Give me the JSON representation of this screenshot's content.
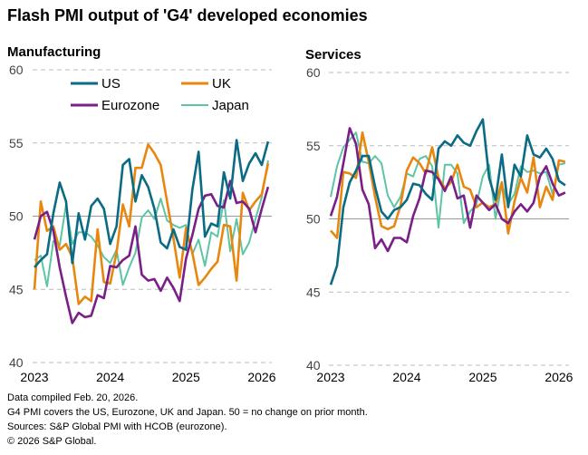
{
  "title": "Flash PMI output of 'G4' developed economies",
  "footnotes": [
    "Data compiled Feb. 20, 2026.",
    "G4 PMI covers the US, Eurozone, UK and Japan. 50 = no change on prior month.",
    "Sources: S&P Global PMI with HCOB (eurozone).",
    "© 2026 S&P Global."
  ],
  "colors": {
    "US": "#0b6b85",
    "UK": "#e8870e",
    "Eurozone": "#7a1f87",
    "Japan": "#5ec4a5"
  },
  "chart_data": [
    {
      "type": "line",
      "title": "Manufacturing",
      "x_start": "2023-01",
      "x_end": "2026-02",
      "frequency": "monthly",
      "xticks": [
        "2023",
        "2024",
        "2025",
        "2026"
      ],
      "yticks": [
        40,
        45,
        50,
        55,
        60
      ],
      "ylim": [
        40,
        60
      ],
      "grid": "dashed horizontal, solid at 50",
      "legend": "top",
      "series": [
        {
          "name": "US",
          "values": [
            46.5,
            47,
            47.4,
            50.2,
            52.3,
            51,
            46.8,
            50.2,
            48.4,
            50.7,
            51.2,
            50.5,
            48.1,
            49.3,
            53.5,
            53.9,
            51,
            52.8,
            52,
            50.5,
            48.2,
            47.8,
            49.1,
            47.9,
            47.7,
            51.8,
            54.4,
            48.6,
            49.5,
            49.3,
            53,
            51.2,
            55.2,
            52.4,
            53.6,
            54.3,
            53.5,
            55.1
          ]
        },
        {
          "name": "UK",
          "values": [
            45,
            51,
            49,
            49.3,
            47.7,
            48.1,
            47.2,
            44,
            44.5,
            44.2,
            49.1,
            45.5,
            45.4,
            47.5,
            50.8,
            49.3,
            53.3,
            53.3,
            54.9,
            54.3,
            53.5,
            51,
            48.5,
            45.8,
            49.2,
            47.5,
            45.3,
            45.8,
            46.4,
            46.9,
            49.4,
            49.3,
            45.6,
            51.6,
            50.4,
            51,
            51.5,
            53.6
          ]
        },
        {
          "name": "Eurozone",
          "values": [
            48.4,
            50,
            50.3,
            49,
            46.5,
            44.5,
            42.7,
            43.4,
            43.1,
            43.2,
            44.6,
            44.4,
            46.6,
            46.5,
            47,
            47.3,
            49.3,
            46,
            45.6,
            45.7,
            44.9,
            45.8,
            45.1,
            44.2,
            47.1,
            48.7,
            50.5,
            51.4,
            51.5,
            50.7,
            50.6,
            52.4,
            50.9,
            51,
            50.5,
            48.9,
            50.5,
            52
          ]
        },
        {
          "name": "Japan",
          "values": [
            47,
            47.3,
            45.2,
            48.3,
            48,
            50.8,
            48.1,
            48.9,
            48.9,
            48.6,
            48,
            47.2,
            46.8,
            47.7,
            45.3,
            46.5,
            47.5,
            49.9,
            50.4,
            49.8,
            51.2,
            49.7,
            49.4,
            49.2,
            49.4,
            47.4,
            48.4,
            46.6,
            48.9,
            48.6,
            51.1,
            47.6,
            49.8,
            47.4,
            48.2,
            49.8,
            51.3,
            53.8
          ]
        }
      ]
    },
    {
      "type": "line",
      "title": "Services",
      "x_start": "2023-01",
      "x_end": "2026-02",
      "frequency": "monthly",
      "xticks": [
        "2023",
        "2024",
        "2025",
        "2026"
      ],
      "yticks": [
        40,
        45,
        50,
        55,
        60
      ],
      "ylim": [
        40,
        60
      ],
      "grid": "dashed horizontal, solid at 50",
      "series": [
        {
          "name": "US",
          "values": [
            45.5,
            46.8,
            50.8,
            52.5,
            53.3,
            54.3,
            54.3,
            52.2,
            50.5,
            50,
            50.6,
            50.8,
            51.3,
            52.4,
            52.3,
            51.7,
            51.3,
            54.8,
            55.3,
            55,
            55.7,
            55.2,
            55,
            56,
            56.8,
            52.8,
            51.3,
            54.4,
            50.8,
            53.7,
            52.9,
            55.7,
            54.4,
            54.2,
            54.8,
            54.1,
            52.6,
            52.3
          ]
        },
        {
          "name": "UK",
          "values": [
            49.2,
            48.7,
            53.2,
            53.1,
            52.8,
            55.9,
            53.9,
            51.5,
            49.5,
            49.3,
            49.5,
            50.9,
            53.3,
            54.2,
            53.8,
            53.1,
            54.9,
            52.8,
            52.1,
            52.5,
            53.7,
            52.2,
            52,
            50.8,
            51.1,
            50.8,
            51,
            52.5,
            49,
            51.2,
            52.8,
            51.8,
            54.2,
            50.8,
            52.2,
            51.3,
            54,
            53.9
          ]
        },
        {
          "name": "Eurozone",
          "values": [
            50.2,
            51.5,
            53.8,
            56.2,
            55.1,
            52,
            51,
            48,
            48.6,
            47.8,
            48.7,
            48.7,
            48.4,
            50.2,
            51.4,
            53.3,
            53.2,
            52.7,
            51.9,
            52.9,
            51.4,
            51.6,
            49.4,
            51.6,
            51.1,
            50.6,
            51,
            50,
            49.7,
            50.5,
            51,
            50.5,
            51.1,
            52.9,
            53.6,
            52.4,
            51.6,
            51.8
          ]
        },
        {
          "name": "Japan",
          "values": [
            51.5,
            53.6,
            54.9,
            55.4,
            55.9,
            53.9,
            53.8,
            54.3,
            53.8,
            51.6,
            50.8,
            51.5,
            53.1,
            52.9,
            54.1,
            54.3,
            53.6,
            49.4,
            53.7,
            53.7,
            53.1,
            49.7,
            50.5,
            51,
            52.9,
            53.7,
            50,
            52.4,
            51,
            51.7,
            53.6,
            53.2,
            53.3,
            53.1,
            53.2,
            51.7,
            53.7,
            53.8
          ]
        }
      ]
    }
  ]
}
